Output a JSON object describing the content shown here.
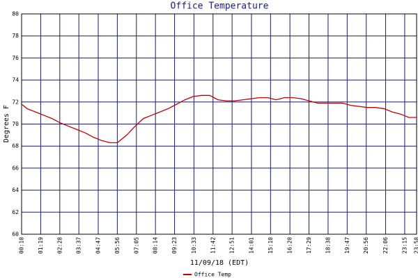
{
  "chart_data": {
    "type": "line",
    "title": "Office Temperature",
    "y_label": "Degrees F",
    "x_label": "11/09/18 (EDT)",
    "x": [
      "00:10",
      "00:30",
      "01:00",
      "01:30",
      "02:00",
      "02:30",
      "03:00",
      "03:30",
      "04:00",
      "04:30",
      "05:00",
      "05:30",
      "05:56",
      "06:30",
      "07:00",
      "07:30",
      "08:00",
      "08:30",
      "09:00",
      "09:30",
      "10:00",
      "10:30",
      "11:00",
      "11:30",
      "12:00",
      "12:30",
      "13:00",
      "13:30",
      "14:00",
      "14:30",
      "15:00",
      "15:30",
      "16:00",
      "16:30",
      "17:00",
      "17:30",
      "18:00",
      "18:30",
      "19:00",
      "19:30",
      "20:00",
      "20:30",
      "21:00",
      "21:30",
      "22:00",
      "22:30",
      "23:00",
      "23:30",
      "23:58"
    ],
    "series": [
      {
        "name": "Office Temp",
        "color": "#c00000",
        "values": [
          71.8,
          71.4,
          71.1,
          70.8,
          70.5,
          70.1,
          69.8,
          69.5,
          69.2,
          68.8,
          68.5,
          68.3,
          68.3,
          69.0,
          69.8,
          70.5,
          70.8,
          71.1,
          71.4,
          71.8,
          72.2,
          72.5,
          72.6,
          72.6,
          72.2,
          72.1,
          72.1,
          72.2,
          72.3,
          72.4,
          72.4,
          72.2,
          72.4,
          72.4,
          72.3,
          72.1,
          71.9,
          71.9,
          71.9,
          71.9,
          71.7,
          71.6,
          71.5,
          71.5,
          71.4,
          71.1,
          70.9,
          70.6,
          70.6
        ]
      }
    ],
    "xlim": [
      "00:10",
      "23:58"
    ],
    "xticks": [
      "00:10",
      "01:19",
      "02:28",
      "03:37",
      "04:47",
      "05:56",
      "07:05",
      "08:14",
      "09:23",
      "10:33",
      "11:42",
      "12:51",
      "14:01",
      "15:10",
      "16:20",
      "17:29",
      "18:38",
      "19:47",
      "20:56",
      "22:06",
      "23:15",
      "23:58"
    ],
    "ylim": [
      60,
      80
    ],
    "yticks": [
      60,
      62,
      64,
      66,
      68,
      70,
      72,
      74,
      76,
      78,
      80
    ],
    "grid": true,
    "grid_color": "#1a1a6e"
  }
}
